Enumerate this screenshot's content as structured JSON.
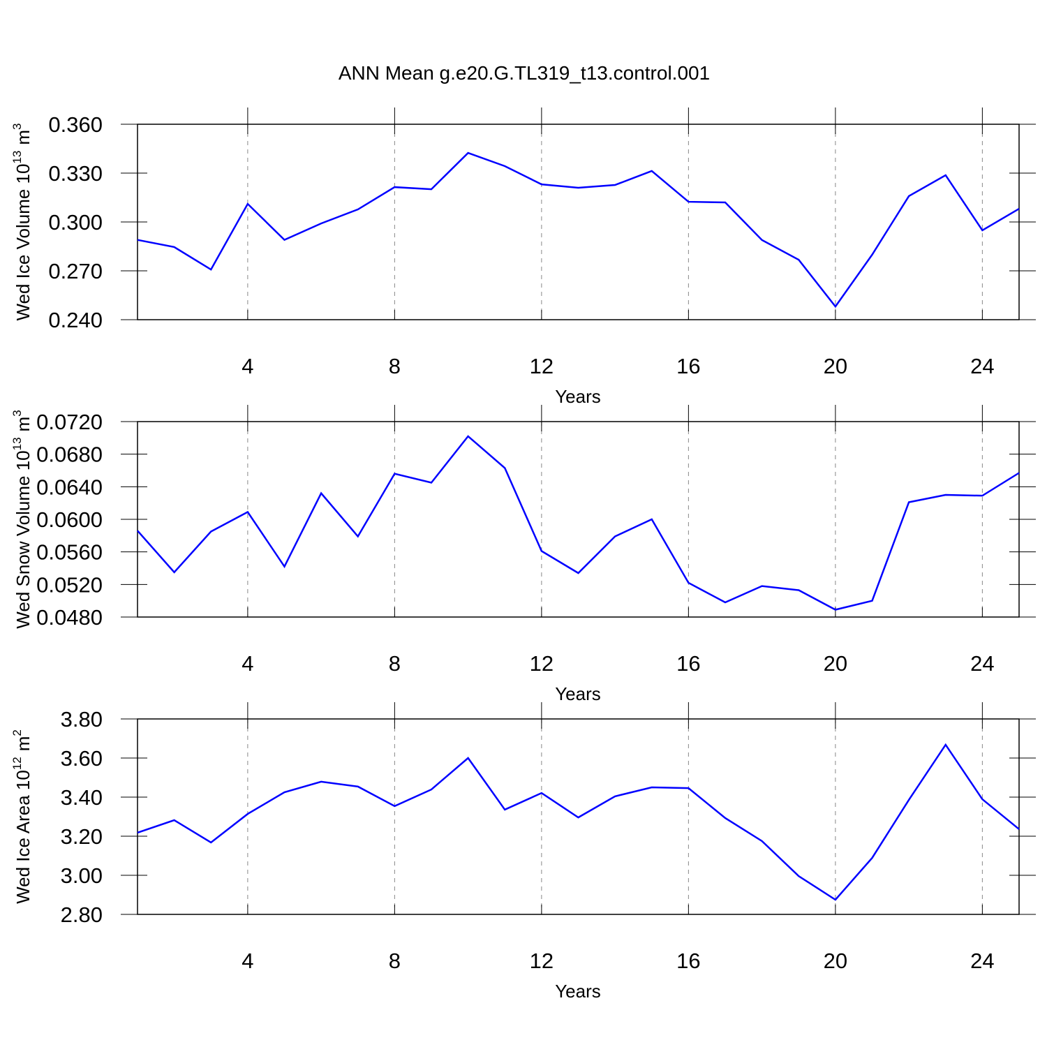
{
  "chart_data": [
    {
      "type": "line",
      "title": "ANN Mean g.e20.G.TL319_t13.control.001",
      "ylabel": {
        "text": "Wed Ice Volume 10",
        "power": "13",
        "unit": "m",
        "unit_power": "3"
      },
      "xlabel": "Years",
      "x": [
        1,
        2,
        3,
        4,
        5,
        6,
        7,
        8,
        9,
        10,
        11,
        12,
        13,
        14,
        15,
        16,
        17,
        18,
        19,
        20,
        21,
        22,
        23,
        24,
        25
      ],
      "values": [
        0.289,
        0.2846,
        0.2708,
        0.3111,
        0.289,
        0.2991,
        0.3077,
        0.3214,
        0.3201,
        0.3424,
        0.3343,
        0.3231,
        0.321,
        0.3227,
        0.3313,
        0.3124,
        0.312,
        0.2889,
        0.2768,
        0.2481,
        0.2799,
        0.3159,
        0.3287,
        0.2949,
        0.3081
      ],
      "color": "#0000ff",
      "xlim": [
        1,
        25
      ],
      "xticks": [
        4,
        8,
        12,
        16,
        20,
        24
      ],
      "grid": "x",
      "ylim": [
        0.24,
        0.36
      ],
      "yticks": [
        {
          "value": 0.24,
          "label": "0.240"
        },
        {
          "value": 0.27,
          "label": "0.270"
        },
        {
          "value": 0.3,
          "label": "0.300"
        },
        {
          "value": 0.33,
          "label": "0.330"
        },
        {
          "value": 0.36,
          "label": "0.360"
        }
      ]
    },
    {
      "type": "line",
      "ylabel": {
        "text": "Wed Snow Volume 10",
        "power": "13",
        "unit": "m",
        "unit_power": "3"
      },
      "xlabel": "Years",
      "x": [
        1,
        2,
        3,
        4,
        5,
        6,
        7,
        8,
        9,
        10,
        11,
        12,
        13,
        14,
        15,
        16,
        17,
        18,
        19,
        20,
        21,
        22,
        23,
        24,
        25
      ],
      "values": [
        0.0586,
        0.0535,
        0.0585,
        0.0609,
        0.0542,
        0.0632,
        0.0579,
        0.0656,
        0.0645,
        0.0702,
        0.0663,
        0.0561,
        0.0534,
        0.0579,
        0.06,
        0.0522,
        0.0498,
        0.0518,
        0.0513,
        0.0489,
        0.05,
        0.0621,
        0.063,
        0.0629,
        0.0657
      ],
      "color": "#0000ff",
      "xlim": [
        1,
        25
      ],
      "xticks": [
        4,
        8,
        12,
        16,
        20,
        24
      ],
      "grid": "x",
      "ylim": [
        0.048,
        0.072
      ],
      "yticks": [
        {
          "value": 0.048,
          "label": "0.0480"
        },
        {
          "value": 0.052,
          "label": "0.0520"
        },
        {
          "value": 0.056,
          "label": "0.0560"
        },
        {
          "value": 0.06,
          "label": "0.0600"
        },
        {
          "value": 0.064,
          "label": "0.0640"
        },
        {
          "value": 0.068,
          "label": "0.0680"
        },
        {
          "value": 0.072,
          "label": "0.0720"
        }
      ]
    },
    {
      "type": "line",
      "ylabel": {
        "text": "Wed Ice Area 10",
        "power": "12",
        "unit": "m",
        "unit_power": "2"
      },
      "xlabel": "Years",
      "x": [
        1,
        2,
        3,
        4,
        5,
        6,
        7,
        8,
        9,
        10,
        11,
        12,
        13,
        14,
        15,
        16,
        17,
        18,
        19,
        20,
        21,
        22,
        23,
        24,
        25
      ],
      "values": [
        3.218,
        3.282,
        3.168,
        3.314,
        3.425,
        3.479,
        3.454,
        3.354,
        3.439,
        3.6,
        3.336,
        3.421,
        3.296,
        3.404,
        3.45,
        3.446,
        3.293,
        3.175,
        2.996,
        2.875,
        3.089,
        3.386,
        3.668,
        3.389,
        3.236
      ],
      "color": "#0000ff",
      "xlim": [
        1,
        25
      ],
      "xticks": [
        4,
        8,
        12,
        16,
        20,
        24
      ],
      "grid": "x",
      "ylim": [
        2.8,
        3.8
      ],
      "yticks": [
        {
          "value": 2.8,
          "label": "2.80"
        },
        {
          "value": 3.0,
          "label": "3.00"
        },
        {
          "value": 3.2,
          "label": "3.20"
        },
        {
          "value": 3.4,
          "label": "3.40"
        },
        {
          "value": 3.6,
          "label": "3.60"
        },
        {
          "value": 3.8,
          "label": "3.80"
        }
      ]
    }
  ]
}
